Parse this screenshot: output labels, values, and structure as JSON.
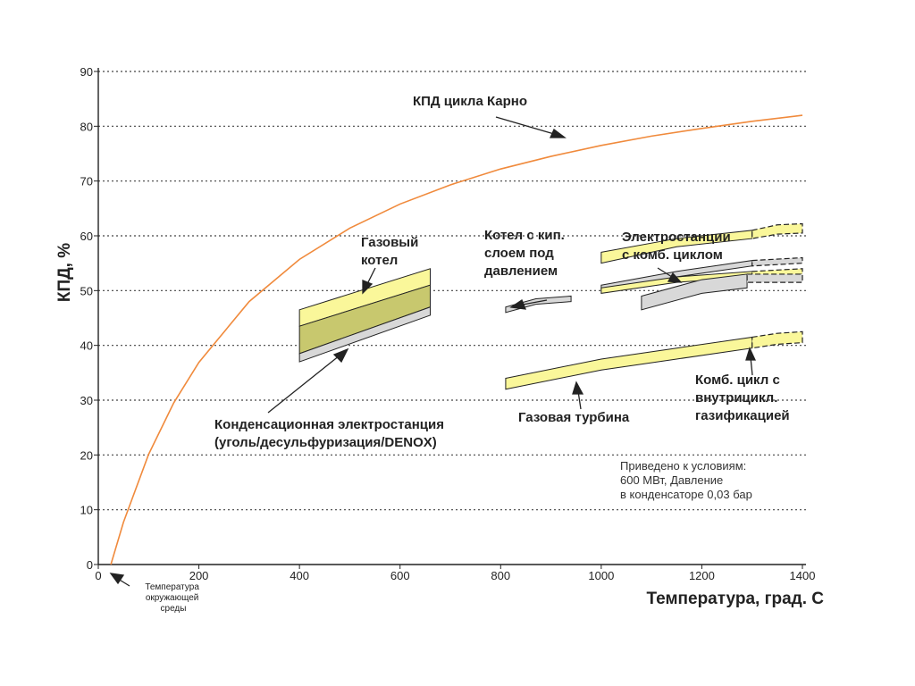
{
  "chart_data": {
    "type": "line",
    "xlabel": "Температура, град. С",
    "ylabel": "КПД, %",
    "xlim": [
      0,
      1400
    ],
    "ylim": [
      0,
      90
    ],
    "x_ticks": [
      0,
      200,
      400,
      600,
      800,
      1000,
      1200,
      1400
    ],
    "y_ticks": [
      0,
      10,
      20,
      30,
      40,
      50,
      60,
      70,
      80,
      90
    ],
    "grid": "horizontal-dotted",
    "colors": {
      "carnot": "#f08a3c",
      "band_yellow": "#faf79a",
      "band_olive": "#c8c86e",
      "band_gray": "#d8d8d8",
      "grid": "#444444"
    },
    "carnot": {
      "name": "КПД цикла Карно",
      "ambient_c": 25,
      "points": [
        [
          25,
          0
        ],
        [
          50,
          7.7
        ],
        [
          100,
          20.1
        ],
        [
          150,
          29.5
        ],
        [
          200,
          36.9
        ],
        [
          300,
          48.0
        ],
        [
          400,
          55.7
        ],
        [
          500,
          61.4
        ],
        [
          600,
          65.8
        ],
        [
          700,
          69.3
        ],
        [
          800,
          72.2
        ],
        [
          900,
          74.5
        ],
        [
          1000,
          76.5
        ],
        [
          1100,
          78.2
        ],
        [
          1200,
          79.6
        ],
        [
          1300,
          80.9
        ],
        [
          1400,
          82.0
        ]
      ]
    },
    "bands": [
      {
        "key": "boiler_yellow",
        "color": "#faf79a",
        "upper": [
          [
            400,
            46.5
          ],
          [
            660,
            54
          ]
        ],
        "lower": [
          [
            400,
            43.5
          ],
          [
            660,
            51
          ]
        ]
      },
      {
        "key": "boiler_olive",
        "color": "#c8c86e",
        "upper": [
          [
            400,
            43.5
          ],
          [
            660,
            51
          ]
        ],
        "lower": [
          [
            400,
            38.5
          ],
          [
            660,
            47
          ]
        ]
      },
      {
        "key": "boiler_gray",
        "color": "#d8d8d8",
        "upper": [
          [
            400,
            38.5
          ],
          [
            660,
            47
          ]
        ],
        "lower": [
          [
            400,
            37
          ],
          [
            660,
            45.5
          ]
        ]
      },
      {
        "key": "pfbc",
        "color": "#d8d8d8",
        "upper": [
          [
            810,
            47
          ],
          [
            870,
            48.5
          ],
          [
            940,
            49
          ]
        ],
        "lower": [
          [
            810,
            46
          ],
          [
            870,
            47.5
          ],
          [
            940,
            48
          ]
        ]
      },
      {
        "key": "cc_top",
        "color": "#faf79a",
        "upper": [
          [
            1000,
            57
          ],
          [
            1150,
            59.5
          ],
          [
            1300,
            61
          ]
        ],
        "lower": [
          [
            1000,
            55
          ],
          [
            1150,
            58
          ],
          [
            1300,
            59.5
          ]
        ]
      },
      {
        "key": "cc_top_ext",
        "color": "#faf79a",
        "dashed": true,
        "upper": [
          [
            1300,
            61
          ],
          [
            1350,
            62
          ],
          [
            1400,
            62.2
          ]
        ],
        "lower": [
          [
            1300,
            59.5
          ],
          [
            1350,
            60.3
          ],
          [
            1400,
            60.5
          ]
        ]
      },
      {
        "key": "cc_mid",
        "color": "#d8d8d8",
        "upper": [
          [
            1000,
            51
          ],
          [
            1150,
            53.5
          ],
          [
            1300,
            55.5
          ]
        ],
        "lower": [
          [
            1000,
            50
          ],
          [
            1150,
            52.5
          ],
          [
            1300,
            54.5
          ]
        ]
      },
      {
        "key": "cc_mid_ext",
        "color": "#d8d8d8",
        "dashed": true,
        "upper": [
          [
            1300,
            55.5
          ],
          [
            1400,
            56
          ]
        ],
        "lower": [
          [
            1300,
            54.5
          ],
          [
            1400,
            55
          ]
        ]
      },
      {
        "key": "cc_low",
        "color": "#faf79a",
        "upper": [
          [
            1000,
            50.5
          ],
          [
            1150,
            52.5
          ],
          [
            1300,
            53.5
          ]
        ],
        "lower": [
          [
            1000,
            49.5
          ],
          [
            1150,
            51.5
          ],
          [
            1300,
            52.5
          ]
        ]
      },
      {
        "key": "cc_low_ext",
        "color": "#faf79a",
        "dashed": true,
        "upper": [
          [
            1300,
            53.5
          ],
          [
            1400,
            54
          ]
        ],
        "lower": [
          [
            1300,
            52.5
          ],
          [
            1400,
            53
          ]
        ]
      },
      {
        "key": "igcc_band",
        "color": "#d8d8d8",
        "upper": [
          [
            1080,
            49
          ],
          [
            1200,
            52
          ],
          [
            1290,
            53
          ]
        ],
        "lower": [
          [
            1080,
            46.5
          ],
          [
            1200,
            49.5
          ],
          [
            1290,
            50.5
          ]
        ]
      },
      {
        "key": "igcc_ext",
        "color": "#d8d8d8",
        "dashed": true,
        "upper": [
          [
            1290,
            53
          ],
          [
            1400,
            53
          ]
        ],
        "lower": [
          [
            1290,
            51.5
          ],
          [
            1400,
            51.5
          ]
        ]
      },
      {
        "key": "gas_turbine",
        "color": "#faf79a",
        "upper": [
          [
            810,
            34
          ],
          [
            1000,
            37.5
          ],
          [
            1150,
            39.5
          ],
          [
            1300,
            41.5
          ]
        ],
        "lower": [
          [
            810,
            32
          ],
          [
            1000,
            35.5
          ],
          [
            1150,
            37.5
          ],
          [
            1300,
            39.5
          ]
        ]
      },
      {
        "key": "gas_turbine_ext",
        "color": "#faf79a",
        "dashed": true,
        "upper": [
          [
            1300,
            41.5
          ],
          [
            1350,
            42.2
          ],
          [
            1400,
            42.5
          ]
        ],
        "lower": [
          [
            1300,
            39.5
          ],
          [
            1350,
            40.2
          ],
          [
            1400,
            40.5
          ]
        ]
      }
    ],
    "annotations": {
      "carnot": "КПД цикла Карно",
      "gas_boiler": [
        "Газовый",
        "котел"
      ],
      "pfbc": [
        "Котел с кип.",
        "слоем под",
        "давлением"
      ],
      "combined": [
        "Электростанции",
        "с комб. циклом"
      ],
      "condensing": [
        "Конденсационная электростанция",
        "(уголь/десульфуризация/DENOX)"
      ],
      "gas_turbine": "Газовая турбина",
      "igcc": [
        "Комб. цикл с",
        "внутрицикл.",
        "газификацией"
      ],
      "note": [
        "Приведено к условиям:",
        "600 МВт, Давление",
        "в конденсаторе 0,03 бар"
      ],
      "ambient": [
        "Температура",
        "окружающей",
        "среды"
      ]
    }
  }
}
